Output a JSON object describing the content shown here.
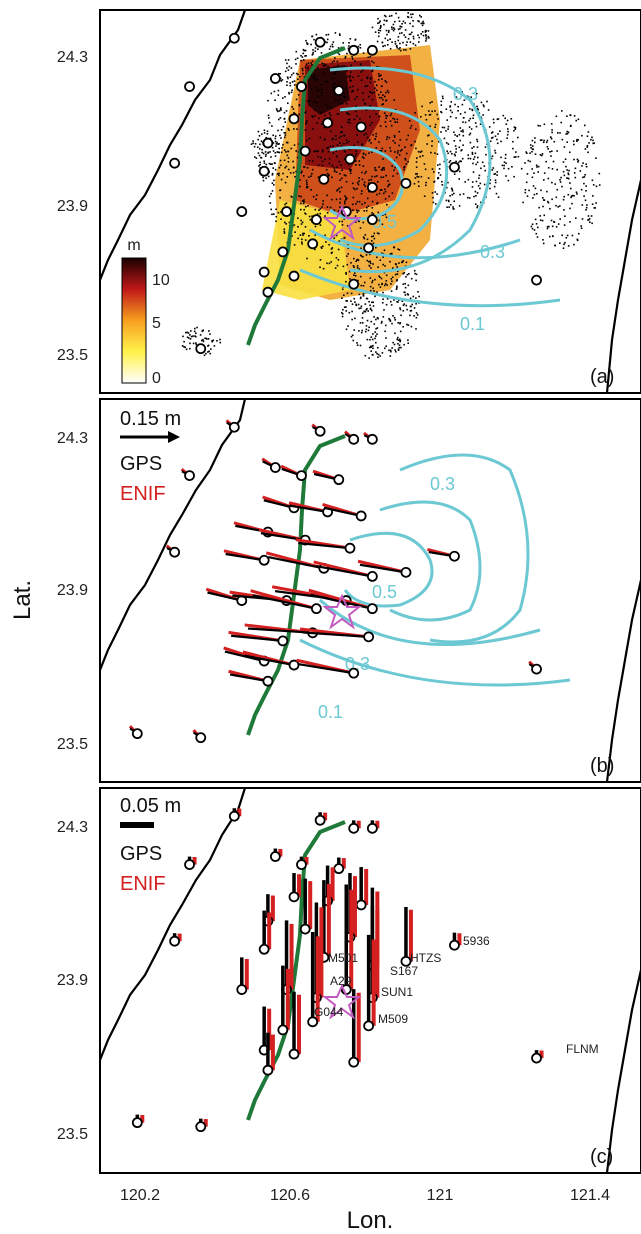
{
  "figure": {
    "x_axis_label": "Lon.",
    "y_axis_label": "Lat.",
    "x_ticks": [
      "120.2",
      "120.6",
      "121",
      "121.4"
    ],
    "y_ticks": [
      "24.3",
      "23.9",
      "23.5"
    ],
    "colors": {
      "coastline": "#000000",
      "fault_trace": "#1f7a3a",
      "contour": "#6cc8d2",
      "gps": "#000000",
      "enif": "#d42020",
      "epicenter": "#c25bc0"
    }
  },
  "panels": [
    {
      "id": "a",
      "tag": "(a)",
      "colorbar": {
        "unit": "m",
        "ticks": [
          "10",
          "5",
          "0"
        ]
      },
      "contour_labels": [
        "0.3",
        "0.3",
        "0.5",
        "0.1"
      ]
    },
    {
      "id": "b",
      "tag": "(b)",
      "scale_label": "0.15 m",
      "legend": [
        "GPS",
        "ENIF"
      ],
      "contour_labels": [
        "0.3",
        "0.5",
        "0.3",
        "0.1"
      ]
    },
    {
      "id": "c",
      "tag": "(c)",
      "scale_label": "0.05 m",
      "legend": [
        "GPS",
        "ENIF"
      ],
      "station_labels": [
        "5936",
        "HTZS",
        "S167",
        "M501",
        "SUN1",
        "A29",
        "G044",
        "M509",
        "FLNM"
      ]
    }
  ],
  "chart_data": {
    "type": "scatter",
    "title": "",
    "xlabel": "Lon.",
    "ylabel": "Lat.",
    "xlim": [
      120.2,
      121.65
    ],
    "ylim": [
      23.45,
      24.4
    ],
    "epicenter": {
      "x": 120.85,
      "y": 23.86
    },
    "gps_stations": [
      {
        "x": 120.79,
        "y": 24.32
      },
      {
        "x": 120.88,
        "y": 24.3
      },
      {
        "x": 120.93,
        "y": 24.3
      },
      {
        "x": 120.67,
        "y": 24.23
      },
      {
        "x": 120.74,
        "y": 24.21
      },
      {
        "x": 120.84,
        "y": 24.2
      },
      {
        "x": 120.72,
        "y": 24.13
      },
      {
        "x": 120.81,
        "y": 24.12
      },
      {
        "x": 120.9,
        "y": 24.11
      },
      {
        "x": 120.65,
        "y": 24.07
      },
      {
        "x": 120.75,
        "y": 24.05
      },
      {
        "x": 120.87,
        "y": 24.03
      },
      {
        "x": 120.4,
        "y": 24.02
      },
      {
        "x": 120.64,
        "y": 24.0
      },
      {
        "x": 120.8,
        "y": 23.98
      },
      {
        "x": 120.93,
        "y": 23.96
      },
      {
        "x": 121.02,
        "y": 23.97
      },
      {
        "x": 121.15,
        "y": 24.01
      },
      {
        "x": 120.58,
        "y": 23.9
      },
      {
        "x": 120.7,
        "y": 23.9
      },
      {
        "x": 120.78,
        "y": 23.88
      },
      {
        "x": 120.86,
        "y": 23.9
      },
      {
        "x": 120.93,
        "y": 23.88
      },
      {
        "x": 120.69,
        "y": 23.8
      },
      {
        "x": 120.77,
        "y": 23.82
      },
      {
        "x": 120.92,
        "y": 23.81
      },
      {
        "x": 120.64,
        "y": 23.75
      },
      {
        "x": 120.72,
        "y": 23.74
      },
      {
        "x": 120.88,
        "y": 23.72
      },
      {
        "x": 120.65,
        "y": 23.7
      },
      {
        "x": 121.37,
        "y": 23.73
      },
      {
        "x": 120.3,
        "y": 23.57
      },
      {
        "x": 120.47,
        "y": 23.56
      },
      {
        "x": 120.56,
        "y": 24.33
      },
      {
        "x": 120.44,
        "y": 24.21
      }
    ],
    "contour_levels": [
      0.1,
      0.3,
      0.5
    ]
  }
}
